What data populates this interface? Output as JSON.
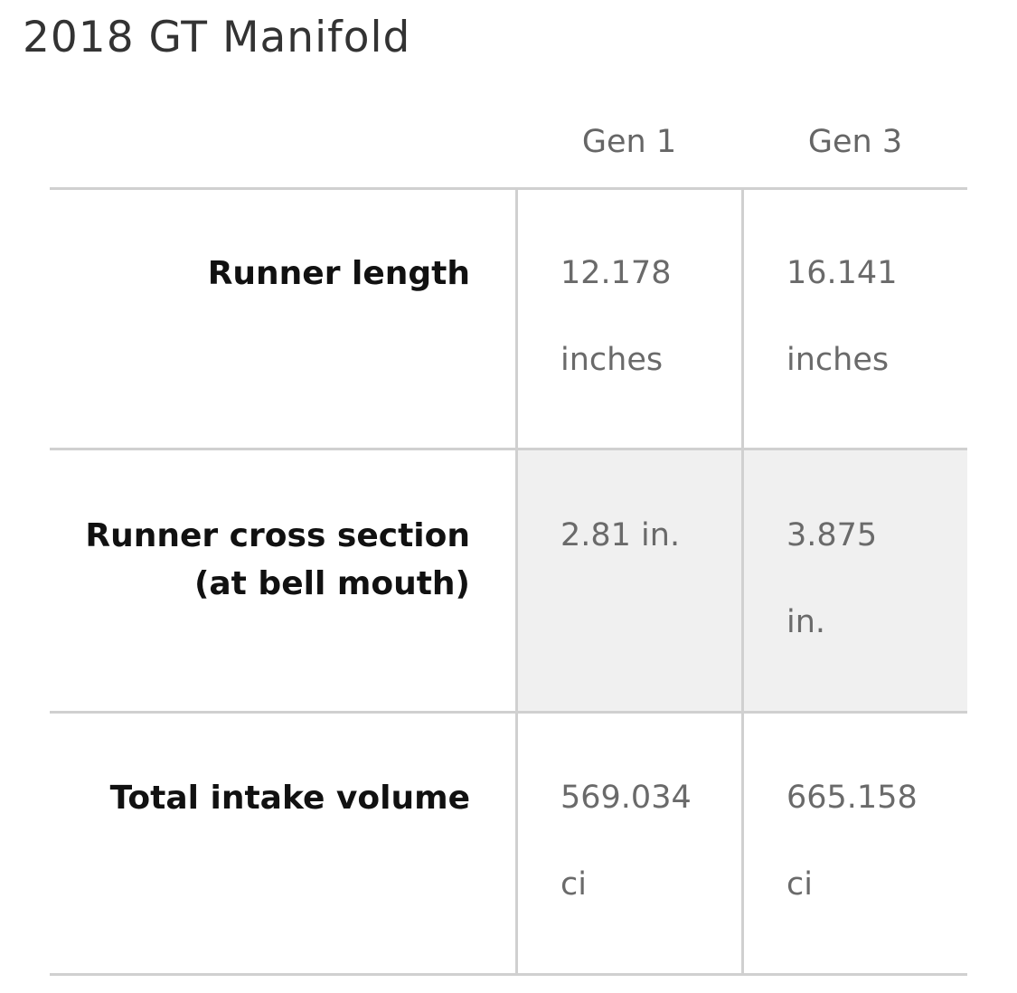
{
  "title": "2018 GT Manifold",
  "table": {
    "columns": [
      "Gen 1",
      "Gen 3"
    ],
    "rows": [
      [
        "Runner length",
        "12.178 inches",
        "16.141 inches"
      ],
      [
        "Runner cross section (at bell mouth)",
        "2.81 in.",
        "3.875 in."
      ],
      [
        "Total intake volume",
        "569.034 ci",
        "665.158 ci"
      ]
    ]
  }
}
